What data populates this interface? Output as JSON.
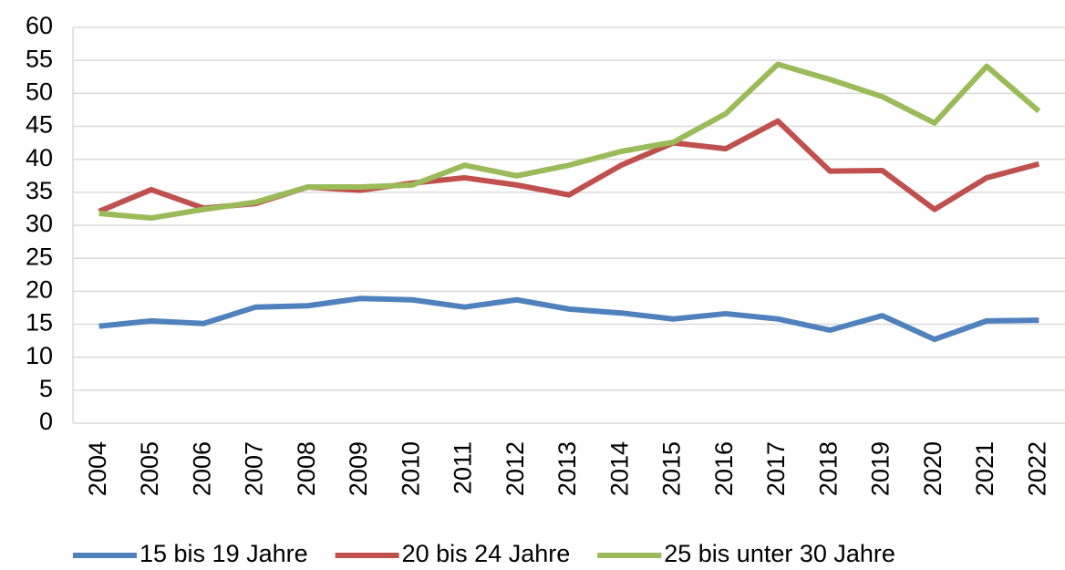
{
  "chart_data": {
    "type": "line",
    "categories": [
      "2004",
      "2005",
      "2006",
      "2007",
      "2008",
      "2009",
      "2010",
      "2011",
      "2012",
      "2013",
      "2014",
      "2015",
      "2016",
      "2017",
      "2018",
      "2019",
      "2020",
      "2021",
      "2022"
    ],
    "series": [
      {
        "name": "15 bis 19 Jahre",
        "color": "#4f81bd",
        "values": [
          14.7,
          15.5,
          15.1,
          17.6,
          17.8,
          18.9,
          18.7,
          17.6,
          18.7,
          17.3,
          16.7,
          15.8,
          16.6,
          15.8,
          14.1,
          16.3,
          12.7,
          15.5,
          15.6
        ]
      },
      {
        "name": "20 bis 24 Jahre",
        "color": "#c0504d",
        "values": [
          32.1,
          35.4,
          32.6,
          33.3,
          35.8,
          35.3,
          36.4,
          37.2,
          36.1,
          34.6,
          39.1,
          42.5,
          41.6,
          45.8,
          38.2,
          38.3,
          32.4,
          37.2,
          39.3
        ]
      },
      {
        "name": "25 bis unter 30 Jahre",
        "color": "#9bbb59",
        "values": [
          31.8,
          31.1,
          32.4,
          33.5,
          35.8,
          35.8,
          36.1,
          39.1,
          37.5,
          39.1,
          41.2,
          42.6,
          46.9,
          54.4,
          52.1,
          49.5,
          45.5,
          54.1,
          47.3
        ]
      }
    ],
    "ylim": [
      0,
      60
    ],
    "yticks": [
      0,
      5,
      10,
      15,
      20,
      25,
      30,
      35,
      40,
      45,
      50,
      55,
      60
    ],
    "grid": true,
    "legend": "bottom"
  }
}
